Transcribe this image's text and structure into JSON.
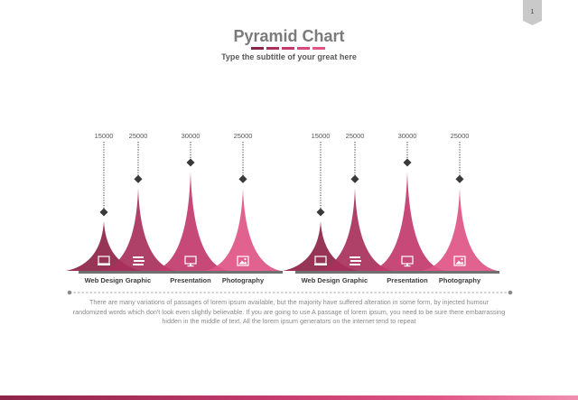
{
  "page": {
    "number": "1"
  },
  "header": {
    "title": "Pyramid Chart",
    "subtitle": "Type the subtitle of your great here",
    "underline_colors": [
      "#8e2449",
      "#a8305a",
      "#c23a6b",
      "#d9487c",
      "#e05586"
    ]
  },
  "chart_data": [
    {
      "type": "area",
      "categories": [
        "Web Design",
        "Graphic",
        "Presentation",
        "Photography"
      ],
      "values": [
        15000,
        25000,
        30000,
        25000
      ],
      "ylim": [
        0,
        30000
      ],
      "colors": [
        "#8e2449",
        "#a8305a",
        "#c23a6b",
        "#e05586"
      ],
      "icons": [
        "monitor-icon",
        "stack-icon",
        "screen-icon",
        "photo-icon"
      ]
    },
    {
      "type": "area",
      "categories": [
        "Web Design",
        "Graphic",
        "Presentation",
        "Photography"
      ],
      "values": [
        15000,
        25000,
        30000,
        25000
      ],
      "ylim": [
        0,
        30000
      ],
      "colors": [
        "#8e2449",
        "#a8305a",
        "#c23a6b",
        "#e05586"
      ],
      "icons": [
        "monitor-icon",
        "stack-icon",
        "screen-icon",
        "photo-icon"
      ]
    }
  ],
  "caption": "There are many variations of passages of lorem ipsum available, but the majority have suffered alteration in some form, by injected humour randomized words which don't look even slightly believable. If you are going to use A passage of lorem ipsum, you need to be sure there embarrassing hidden in the middle of text. All the lorem ipsum generators on the internet tend to repeat",
  "colors": {
    "baseline": "#707070",
    "label": "#3a3a3a",
    "value": "#555555",
    "marker": "#3a3a3a"
  }
}
